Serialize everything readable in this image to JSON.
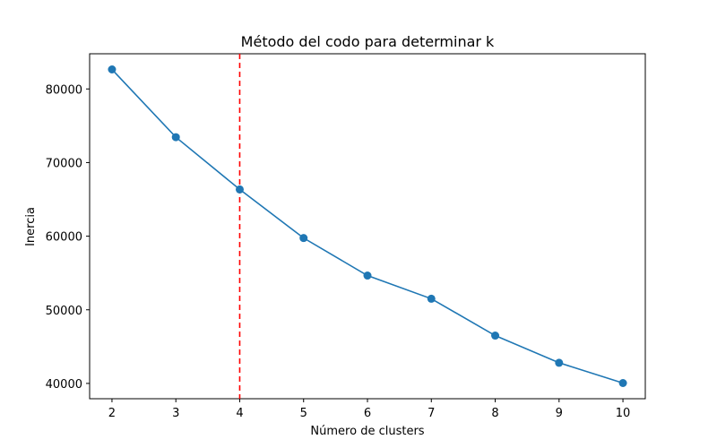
{
  "chart_data": {
    "type": "line",
    "title": "Método del codo para determinar k",
    "xlabel": "Número de clusters",
    "ylabel": "Inercia",
    "x": [
      2,
      3,
      4,
      5,
      6,
      7,
      8,
      9,
      10
    ],
    "series": [
      {
        "values": [
          82650,
          73450,
          66350,
          59750,
          54650,
          51500,
          46500,
          42800,
          40050
        ],
        "color": "#1f77b4",
        "marker": "circle"
      }
    ],
    "xticks": [
      2,
      3,
      4,
      5,
      6,
      7,
      8,
      9,
      10
    ],
    "yticks": [
      40000,
      50000,
      60000,
      70000,
      80000
    ],
    "xlim": [
      1.65,
      10.35
    ],
    "ylim": [
      37920,
      84780
    ],
    "reference_line": {
      "axis": "x",
      "value": 4,
      "style": "dashed",
      "color": "#ff0000"
    },
    "grid": false,
    "legend": "none"
  }
}
